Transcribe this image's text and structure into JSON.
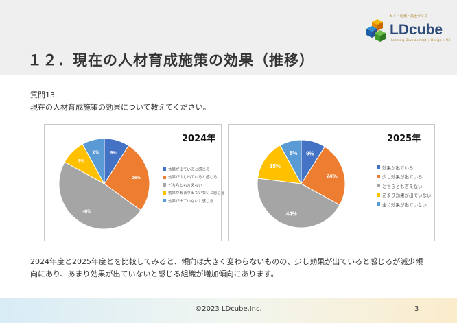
{
  "slide": {
    "title": "１２．現在の人材育成施策の効果（推移）",
    "question_label": "質問13",
    "question_text": "現在の人材育成施策の効果について教えてください。",
    "summary": "2024年度と2025年度とを比較してみると、傾向は大きく変わらないものの、少し効果が出ていると感じるが減少傾向にあり、あまり効果が出ていないと感じる組織が増加傾向にあります。"
  },
  "logo": {
    "name": "LDcube",
    "tagline": "ヒト・組織・風土づくり",
    "subtitle": "Learning Development + Design + UX"
  },
  "footer": {
    "copyright": "©2023 LDcube,Inc.",
    "page": "3"
  },
  "colors": {
    "blue": "#4472C4",
    "orange": "#ED7D31",
    "gray": "#A5A5A5",
    "yellow": "#FFC000",
    "lightblue": "#5B9BD5"
  },
  "chart_data": [
    {
      "type": "pie",
      "title": "2024年",
      "slices": [
        {
          "label": "効果が出ていると感じる",
          "value": 9,
          "data_label": "9%",
          "color": "#4472C4"
        },
        {
          "label": "効果が少し出ていると感じる",
          "value": 26,
          "data_label": "26%",
          "color": "#ED7D31"
        },
        {
          "label": "どちらとも言えない",
          "value": 48,
          "data_label": "48%",
          "color": "#A5A5A5"
        },
        {
          "label": "効果があまり出ていないと感じる",
          "value": 9,
          "data_label": "9%",
          "color": "#FFC000"
        },
        {
          "label": "効果が出ていないと感じる",
          "value": 8,
          "data_label": "8%",
          "color": "#5B9BD5"
        }
      ],
      "legend_position": "right"
    },
    {
      "type": "pie",
      "title": "2025年",
      "slices": [
        {
          "label": "効果が出ている",
          "value": 9,
          "data_label": "9%",
          "color": "#4472C4"
        },
        {
          "label": "少し効果が出ている",
          "value": 24,
          "data_label": "24%",
          "color": "#ED7D31"
        },
        {
          "label": "どちらとも言えない",
          "value": 44,
          "data_label": "44%",
          "color": "#A5A5A5"
        },
        {
          "label": "あまり効果が出ていない",
          "value": 15,
          "data_label": "15%",
          "color": "#FFC000"
        },
        {
          "label": "全く効果が出ていない",
          "value": 8,
          "data_label": "8%",
          "color": "#5B9BD5"
        }
      ],
      "legend_position": "right"
    }
  ]
}
